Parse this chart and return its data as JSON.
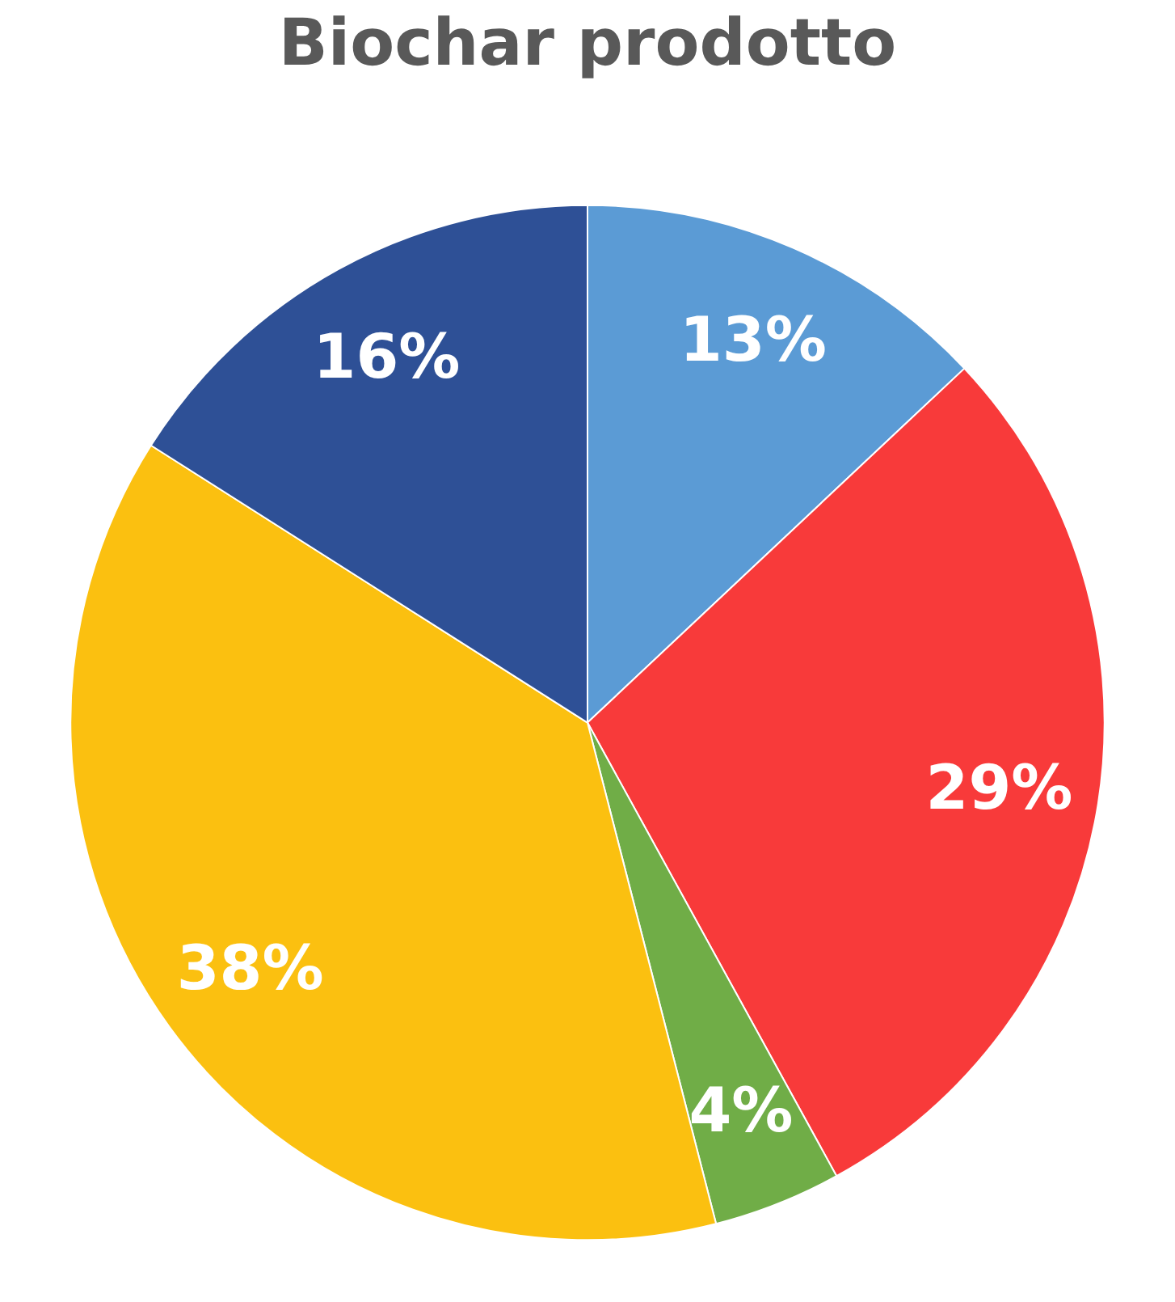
{
  "chart_data": {
    "type": "pie",
    "title": "Biochar prodotto",
    "categories": [
      null,
      null,
      null,
      null,
      null
    ],
    "values": [
      13,
      29,
      4,
      38,
      16
    ],
    "colors": [
      "#5b9bd5",
      "#f83a3a",
      "#70ad47",
      "#fbc010",
      "#2e5096"
    ],
    "value_labels": [
      "13%",
      "29%",
      "4%",
      "38%",
      "16%"
    ]
  }
}
